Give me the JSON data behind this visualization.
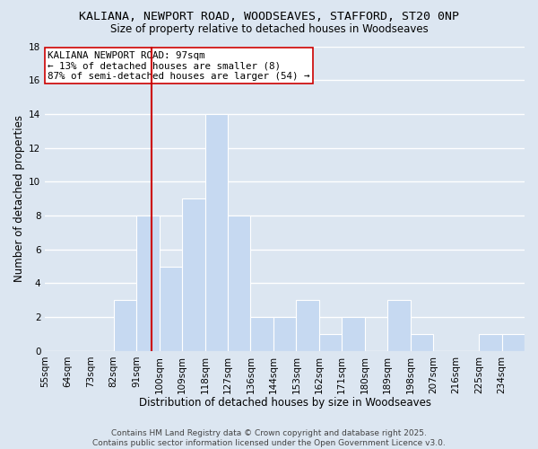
{
  "title": "KALIANA, NEWPORT ROAD, WOODSEAVES, STAFFORD, ST20 0NP",
  "subtitle": "Size of property relative to detached houses in Woodseaves",
  "xlabel": "Distribution of detached houses by size in Woodseaves",
  "ylabel": "Number of detached properties",
  "bin_labels": [
    "55sqm",
    "64sqm",
    "73sqm",
    "82sqm",
    "91sqm",
    "100sqm",
    "109sqm",
    "118sqm",
    "127sqm",
    "136sqm",
    "144sqm",
    "153sqm",
    "162sqm",
    "171sqm",
    "180sqm",
    "189sqm",
    "198sqm",
    "207sqm",
    "216sqm",
    "225sqm",
    "234sqm"
  ],
  "counts": [
    0,
    0,
    0,
    3,
    8,
    5,
    9,
    14,
    8,
    2,
    2,
    3,
    1,
    2,
    0,
    3,
    1,
    0,
    0,
    1,
    1
  ],
  "bar_color": "#c6d9f1",
  "bar_edge_color": "#ffffff",
  "grid_color": "#ffffff",
  "bg_color": "#dce6f1",
  "vline_color": "#cc0000",
  "annotation_title": "KALIANA NEWPORT ROAD: 97sqm",
  "annotation_line1": "← 13% of detached houses are smaller (8)",
  "annotation_line2": "87% of semi-detached houses are larger (54) →",
  "annotation_box_color": "#ffffff",
  "annotation_box_edge": "#cc0000",
  "footer1": "Contains HM Land Registry data © Crown copyright and database right 2025.",
  "footer2": "Contains public sector information licensed under the Open Government Licence v3.0.",
  "ylim": [
    0,
    18
  ],
  "title_fontsize": 9.5,
  "subtitle_fontsize": 8.5,
  "axis_label_fontsize": 8.5,
  "tick_fontsize": 7.5,
  "annotation_fontsize": 7.8,
  "footer_fontsize": 6.5,
  "vline_bin_index": 4
}
